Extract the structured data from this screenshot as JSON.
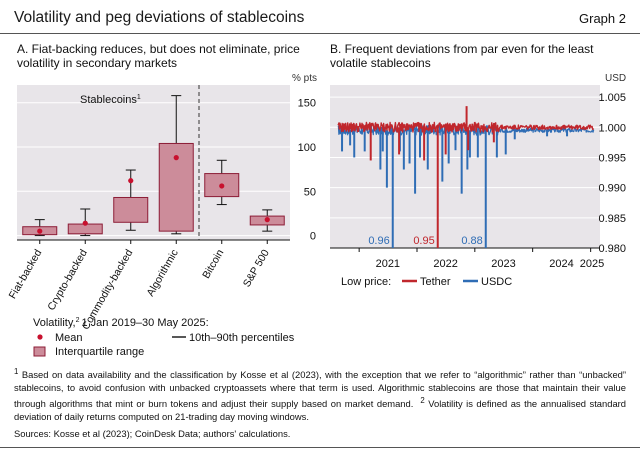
{
  "header": {
    "title": "Volatility and peg deviations of stablecoins",
    "graph_label": "Graph 2"
  },
  "colors": {
    "panel_bg": "#e8e5e9",
    "box_fill": "#cc8c9a",
    "box_stroke": "#8c1c36",
    "mean_dot": "#c8102e",
    "tether": "#c0272d",
    "usdc": "#2f6db5"
  },
  "chart_data": [
    {
      "type": "box",
      "title": "A. Fiat-backing reduces, but does not eliminate, price volatility in secondary markets",
      "unit": "% pts",
      "ylim": [
        -5,
        170
      ],
      "yticks": [
        0,
        50,
        100,
        150
      ],
      "group_label": "Stablecoins",
      "group_label_sup": "1",
      "categories": [
        "Fiat-backed",
        "Crypto-backed",
        "Commodity-backed",
        "Algorithmic",
        "Bitcoin",
        "S&P 500"
      ],
      "boxes": [
        {
          "p10": 0,
          "q1": 1,
          "q3": 10,
          "p90": 18,
          "mean": 5
        },
        {
          "p10": 0,
          "q1": 2,
          "q3": 13,
          "p90": 30,
          "mean": 14
        },
        {
          "p10": 6,
          "q1": 15,
          "q3": 43,
          "p90": 74,
          "mean": 62
        },
        {
          "p10": 2,
          "q1": 5,
          "q3": 104,
          "p90": 158,
          "mean": 88
        },
        {
          "p10": 35,
          "q1": 44,
          "q3": 70,
          "p90": 85,
          "mean": 56
        },
        {
          "p10": 5,
          "q1": 12,
          "q3": 22,
          "p90": 29,
          "mean": 18
        }
      ],
      "legend_title": "Volatility,",
      "legend_title_sup": "2",
      "legend_title_rest": "1 Jan 2019–30 May 2025:",
      "legend": [
        "Mean",
        "10th–90th percentiles",
        "Interquartile range"
      ]
    },
    {
      "type": "line",
      "title": "B. Frequent deviations from par even for the least volatile stablecoins",
      "unit": "USD",
      "ylim": [
        0.98,
        1.007
      ],
      "yticks": [
        "0.980",
        "0.985",
        "0.990",
        "0.995",
        "1.000",
        "1.005"
      ],
      "xlim": [
        "2020-07-01",
        "2025-03-01"
      ],
      "xticks": [
        "2021",
        "2022",
        "2023",
        "2024",
        "2025"
      ],
      "legend_prefix": "Low price:",
      "series": [
        {
          "name": "Tether",
          "baseline": 1.0,
          "spikes": [
            {
              "x": "2021-03-15",
              "y": 0.9945
            },
            {
              "x": "2021-09-10",
              "y": 0.9955
            },
            {
              "x": "2022-02-15",
              "y": 0.9945
            },
            {
              "x": "2022-05-12",
              "y": 0.95
            },
            {
              "x": "2022-07-01",
              "y": 0.9955
            },
            {
              "x": "2022-11-10",
              "y": 1.0035
            },
            {
              "x": "2022-11-20",
              "y": 0.9962
            },
            {
              "x": "2023-05-01",
              "y": 0.9975
            }
          ]
        },
        {
          "name": "USDC",
          "baseline": 0.9995,
          "spikes": [
            {
              "x": "2020-09-15",
              "y": 0.996
            },
            {
              "x": "2020-11-05",
              "y": 0.997
            },
            {
              "x": "2020-12-01",
              "y": 0.995
            },
            {
              "x": "2021-02-05",
              "y": 0.996
            },
            {
              "x": "2021-05-15",
              "y": 0.993
            },
            {
              "x": "2021-05-30",
              "y": 0.996
            },
            {
              "x": "2021-06-25",
              "y": 0.99
            },
            {
              "x": "2021-08-01",
              "y": 0.96
            },
            {
              "x": "2021-09-15",
              "y": 0.996
            },
            {
              "x": "2021-10-10",
              "y": 0.993
            },
            {
              "x": "2021-11-15",
              "y": 0.994
            },
            {
              "x": "2021-12-20",
              "y": 0.989
            },
            {
              "x": "2022-01-20",
              "y": 0.995
            },
            {
              "x": "2022-03-10",
              "y": 0.993
            },
            {
              "x": "2022-06-10",
              "y": 0.991
            },
            {
              "x": "2022-07-20",
              "y": 0.994
            },
            {
              "x": "2022-09-01",
              "y": 0.9962
            },
            {
              "x": "2022-10-10",
              "y": 0.989
            },
            {
              "x": "2022-11-15",
              "y": 0.993
            },
            {
              "x": "2022-12-01",
              "y": 0.995
            },
            {
              "x": "2023-01-20",
              "y": 0.995
            },
            {
              "x": "2023-03-11",
              "y": 0.88
            },
            {
              "x": "2023-05-20",
              "y": 0.995
            },
            {
              "x": "2023-07-15",
              "y": 0.9955
            },
            {
              "x": "2023-09-10",
              "y": 0.998
            },
            {
              "x": "2024-04-01",
              "y": 0.9985
            },
            {
              "x": "2024-08-05",
              "y": 0.9985
            }
          ]
        }
      ],
      "annotations": [
        {
          "text": "0.96",
          "series": "USDC",
          "x": "2021-08-01"
        },
        {
          "text": "0.95",
          "series": "Tether",
          "x": "2022-05-12"
        },
        {
          "text": "0.88",
          "series": "USDC",
          "x": "2023-03-11"
        }
      ]
    }
  ],
  "footnotes": {
    "note1_num": "1",
    "note1": "Based on data availability and the classification by Kosse et al (2023), with the exception that we refer to “algorithmic” rather than “unbacked” stablecoins, to avoid confusion with unbacked cryptoassets where that term is used. Algorithmic stablecoins are those that maintain their value through algorithms that mint or burn tokens and adjust their supply based on market demand.",
    "note2_num": "2",
    "note2": "Volatility is defined as the annualised standard deviation of daily returns computed on 21-trading day moving windows."
  },
  "sources": "Sources: Kosse et al (2023); CoinDesk Data; authors' calculations."
}
